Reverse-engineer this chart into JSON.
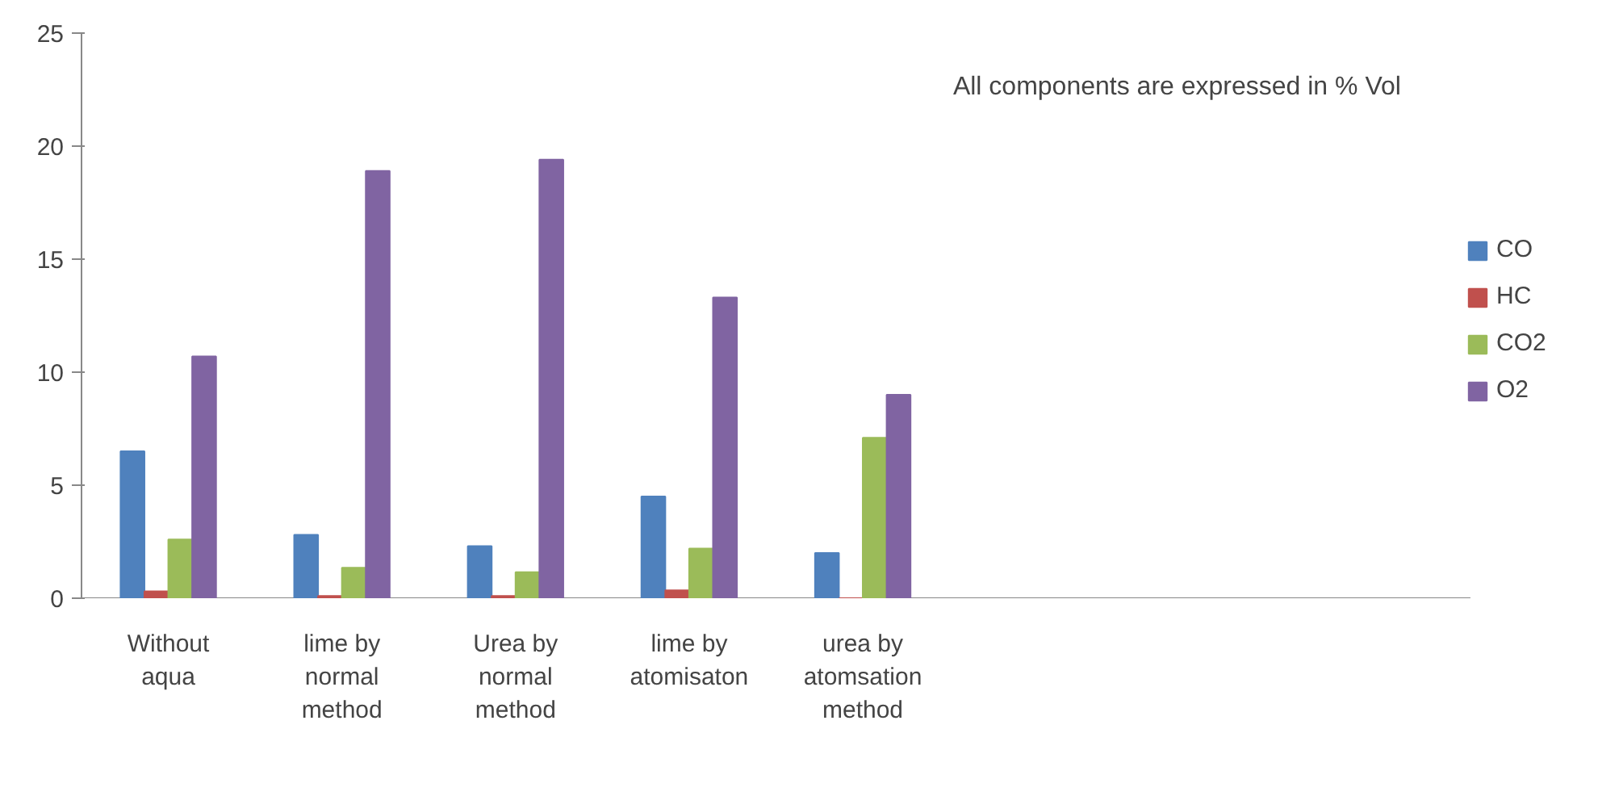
{
  "chart_data": {
    "type": "bar",
    "categories": [
      "Without\naqua",
      "lime by\nnormal\nmethod",
      "Urea by\nnormal\nmethod",
      "lime by\natomisaton",
      "urea by\natomsation\nmethod",
      null,
      null,
      null
    ],
    "series": [
      {
        "name": "CO",
        "color": "#4f81bd",
        "values": [
          6.5,
          2.8,
          2.3,
          4.5,
          2.0,
          null,
          null,
          null
        ]
      },
      {
        "name": "HC",
        "color": "#c0504d",
        "values": [
          0.3,
          0.1,
          0.1,
          0.35,
          0,
          null,
          null,
          null
        ]
      },
      {
        "name": "CO2",
        "color": "#9bbb59",
        "values": [
          2.6,
          1.35,
          1.15,
          2.2,
          7.1,
          null,
          null,
          null
        ]
      },
      {
        "name": "O2",
        "color": "#8064a2",
        "values": [
          10.7,
          18.9,
          19.4,
          13.3,
          9.0,
          null,
          null,
          null
        ]
      }
    ],
    "ylim": [
      0,
      25
    ],
    "yticks": [
      0,
      5,
      10,
      15,
      20,
      25
    ],
    "grid": false,
    "legend": "right",
    "annotations": [
      "All components are expressed in % Vol"
    ]
  }
}
